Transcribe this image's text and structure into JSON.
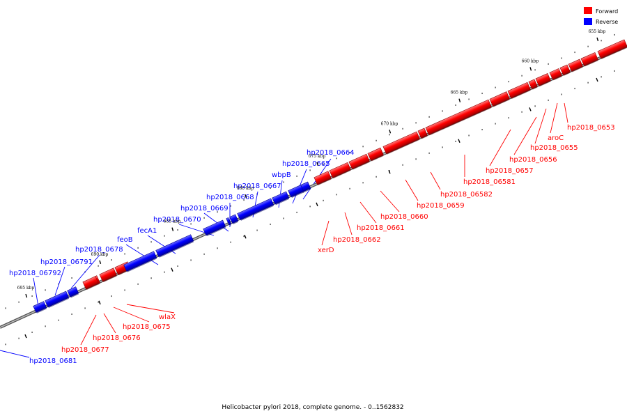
{
  "caption": "Helicobacter pylori 2018, complete genome. - 0..1562832",
  "legend": [
    {
      "label": "Forward",
      "color": "#ff0000"
    },
    {
      "label": "Reverse",
      "color": "#0000ff"
    }
  ],
  "colors": {
    "forward": "#ff0000",
    "reverse": "#0000ff",
    "backbone": "#808080"
  },
  "ticks": [
    "655 kbp",
    "660 kbp",
    "665 kbp",
    "670 kbp",
    "675 kbp",
    "680 kbp",
    "685 kbp",
    "690 kbp",
    "695 kbp"
  ],
  "genes": [
    {
      "name": "hp2018_0653",
      "strand": "forward"
    },
    {
      "name": "aroC",
      "strand": "forward"
    },
    {
      "name": "hp2018_0655",
      "strand": "forward"
    },
    {
      "name": "hp2018_0656",
      "strand": "forward"
    },
    {
      "name": "hp2018_0657",
      "strand": "forward"
    },
    {
      "name": "hp2018_06581",
      "strand": "forward"
    },
    {
      "name": "hp2018_06582",
      "strand": "forward"
    },
    {
      "name": "hp2018_0659",
      "strand": "forward"
    },
    {
      "name": "hp2018_0660",
      "strand": "forward"
    },
    {
      "name": "hp2018_0661",
      "strand": "forward"
    },
    {
      "name": "hp2018_0662",
      "strand": "forward"
    },
    {
      "name": "xerD",
      "strand": "forward"
    },
    {
      "name": "hp2018_0664",
      "strand": "reverse"
    },
    {
      "name": "hp2018_0665",
      "strand": "reverse"
    },
    {
      "name": "wbpB",
      "strand": "reverse"
    },
    {
      "name": "hp2018_0667",
      "strand": "reverse"
    },
    {
      "name": "hp2018_0668",
      "strand": "reverse"
    },
    {
      "name": "hp2018_0669",
      "strand": "reverse"
    },
    {
      "name": "hp2018_0670",
      "strand": "reverse"
    },
    {
      "name": "fecA1",
      "strand": "reverse"
    },
    {
      "name": "feoB",
      "strand": "reverse"
    },
    {
      "name": "hp2018_0678",
      "strand": "reverse"
    },
    {
      "name": "hp2018_06791",
      "strand": "reverse"
    },
    {
      "name": "hp2018_06792",
      "strand": "reverse"
    },
    {
      "name": "wlaX",
      "strand": "forward"
    },
    {
      "name": "hp2018_0675",
      "strand": "forward"
    },
    {
      "name": "hp2018_0676",
      "strand": "forward"
    },
    {
      "name": "hp2018_0677",
      "strand": "forward"
    },
    {
      "name": "hp2018_0681",
      "strand": "reverse"
    }
  ]
}
